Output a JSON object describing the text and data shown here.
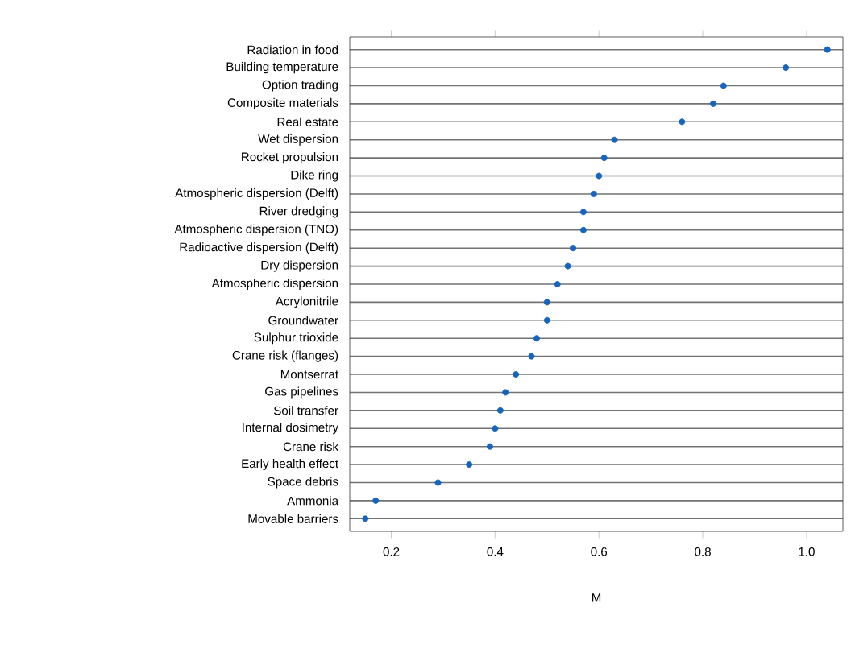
{
  "chart_data": {
    "type": "scatter",
    "orientation": "horizontal",
    "xlabel": "M",
    "categories": [
      "Radiation in food",
      "Building temperature",
      "Option trading",
      "Composite materials",
      "Real estate",
      "Wet dispersion",
      "Rocket propulsion",
      "Dike ring",
      "Atmospheric dispersion (Delft)",
      "River dredging",
      "Atmospheric dispersion (TNO)",
      "Radioactive dispersion (Delft)",
      "Dry dispersion",
      "Atmospheric dispersion",
      "Acrylonitrile",
      "Groundwater",
      "Sulphur trioxide",
      "Crane risk (flanges)",
      "Montserrat",
      "Gas pipelines",
      "Soil transfer",
      "Internal dosimetry",
      "Crane risk",
      "Early health effect",
      "Space debris",
      "Ammonia",
      "Movable barriers"
    ],
    "series": [
      {
        "color": "#1565c0",
        "values": [
          1.04,
          0.96,
          0.84,
          0.82,
          0.76,
          0.63,
          0.61,
          0.6,
          0.59,
          0.57,
          0.57,
          0.55,
          0.54,
          0.52,
          0.5,
          0.5,
          0.48,
          0.47,
          0.44,
          0.42,
          0.41,
          0.4,
          0.39,
          0.35,
          0.29,
          0.17,
          0.15
        ]
      }
    ],
    "xlim": [
      0.12,
      1.07
    ],
    "xticks": [
      {
        "value": 0.2,
        "label": "0.2"
      },
      {
        "value": 0.4,
        "label": "0.4"
      },
      {
        "value": 0.6,
        "label": "0.6"
      },
      {
        "value": 0.8,
        "label": "0.8"
      },
      {
        "value": 1.0,
        "label": "1.0"
      }
    ],
    "grid": "y",
    "marker": "circle"
  }
}
